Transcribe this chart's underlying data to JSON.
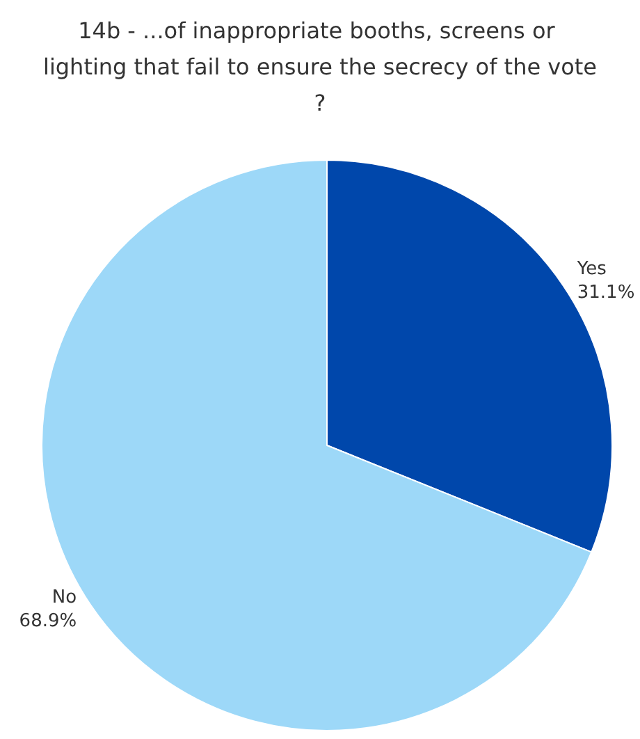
{
  "chart_data": {
    "type": "pie",
    "title": "14b - ...of inappropriate booths, screens or lighting that fail to ensure the secrecy of the vote?",
    "categories": [
      "Yes",
      "No"
    ],
    "values": [
      31.1,
      68.9
    ],
    "value_labels": [
      "31.1%",
      "68.9%"
    ],
    "colors": [
      "#0047ab",
      "#9dd8f8"
    ]
  }
}
